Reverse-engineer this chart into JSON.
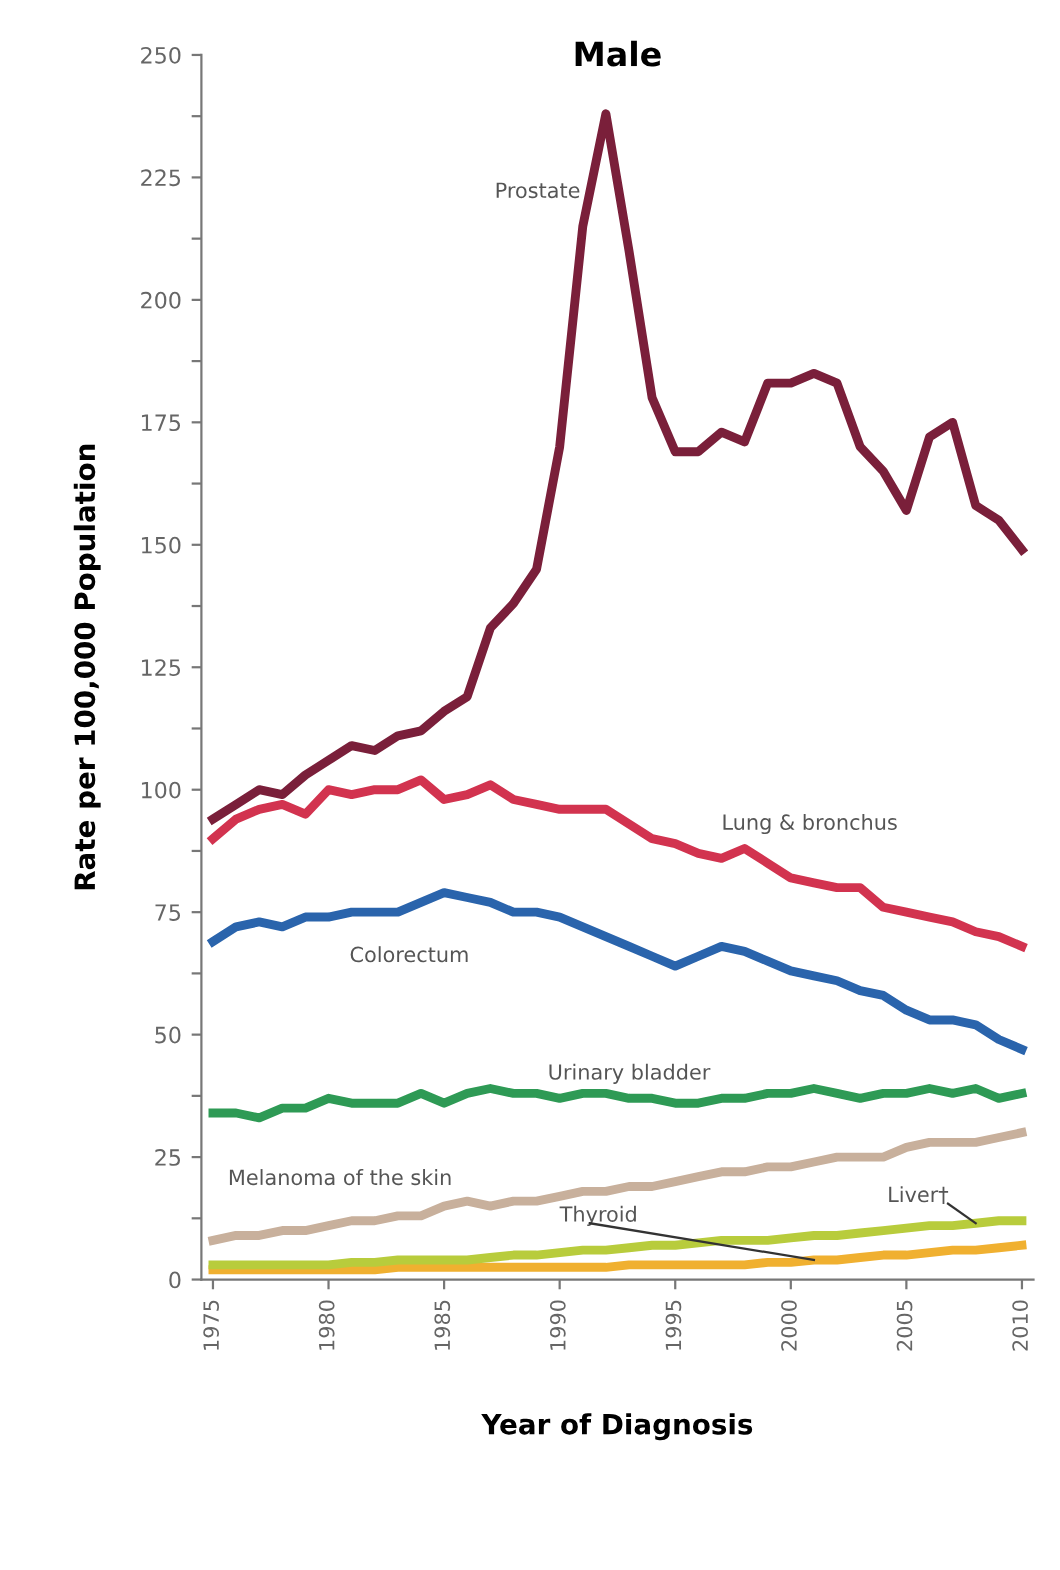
{
  "chart_data": {
    "type": "line",
    "title": "Male",
    "xlabel": "Year of Diagnosis",
    "ylabel": "Rate per 100,000 Population",
    "x": [
      1975,
      1976,
      1977,
      1978,
      1979,
      1980,
      1981,
      1982,
      1983,
      1984,
      1985,
      1986,
      1987,
      1988,
      1989,
      1990,
      1991,
      1992,
      1993,
      1994,
      1995,
      1996,
      1997,
      1998,
      1999,
      2000,
      2001,
      2002,
      2003,
      2004,
      2005,
      2006,
      2007,
      2008,
      2009,
      2010
    ],
    "series": [
      {
        "name": "Prostate",
        "color": "#7a1f3a",
        "values": [
          94,
          97,
          100,
          99,
          103,
          106,
          109,
          108,
          111,
          112,
          116,
          119,
          133,
          138,
          145,
          170,
          215,
          238,
          210,
          180,
          169,
          169,
          173,
          171,
          183,
          183,
          185,
          183,
          170,
          165,
          157,
          172,
          175,
          158,
          155,
          149
        ]
      },
      {
        "name": "Lung & bronchus",
        "color": "#d2334f",
        "values": [
          90,
          94,
          96,
          97,
          95,
          100,
          99,
          100,
          100,
          102,
          98,
          99,
          101,
          98,
          97,
          96,
          96,
          96,
          93,
          90,
          89,
          87,
          86,
          88,
          85,
          82,
          81,
          80,
          80,
          76,
          75,
          74,
          73,
          71,
          70,
          68
        ]
      },
      {
        "name": "Colorectum",
        "color": "#2a64ac",
        "values": [
          69,
          72,
          73,
          72,
          74,
          74,
          75,
          75,
          75,
          77,
          79,
          78,
          77,
          75,
          75,
          74,
          72,
          70,
          68,
          66,
          64,
          66,
          68,
          67,
          65,
          63,
          62,
          61,
          59,
          58,
          55,
          53,
          53,
          52,
          49,
          47
        ]
      },
      {
        "name": "Urinary bladder",
        "color": "#2e9a55",
        "values": [
          34,
          34,
          33,
          35,
          35,
          37,
          36,
          36,
          36,
          38,
          36,
          38,
          39,
          38,
          38,
          37,
          38,
          38,
          37,
          37,
          36,
          36,
          37,
          37,
          38,
          38,
          39,
          38,
          37,
          38,
          38,
          39,
          38,
          39,
          37,
          38
        ]
      },
      {
        "name": "Melanoma of the skin",
        "color": "#c8b09c",
        "values": [
          8,
          9,
          9,
          10,
          10,
          11,
          12,
          12,
          13,
          13,
          15,
          16,
          15,
          16,
          16,
          17,
          18,
          18,
          19,
          19,
          20,
          21,
          22,
          22,
          23,
          23,
          24,
          25,
          25,
          25,
          27,
          28,
          28,
          28,
          29,
          30
        ]
      },
      {
        "name": "Liver†",
        "color": "#b8cc3c",
        "values": [
          3,
          3,
          3,
          3,
          3,
          3,
          3.5,
          3.5,
          4,
          4,
          4,
          4,
          4.5,
          5,
          5,
          5.5,
          6,
          6,
          6.5,
          7,
          7,
          7.5,
          8,
          8,
          8,
          8.5,
          9,
          9,
          9.5,
          10,
          10.5,
          11,
          11,
          11.5,
          12,
          12
        ]
      },
      {
        "name": "Thyroid",
        "color": "#f0b030",
        "values": [
          2,
          2,
          2,
          2,
          2,
          2,
          2,
          2,
          2.5,
          2.5,
          2.5,
          2.5,
          2.5,
          2.5,
          2.5,
          2.5,
          2.5,
          2.5,
          3,
          3,
          3,
          3,
          3,
          3,
          3.5,
          3.5,
          4,
          4,
          4.5,
          5,
          5,
          5.5,
          6,
          6,
          6.5,
          7
        ]
      }
    ],
    "xlim": [
      1974.5,
      2010.5
    ],
    "xticks": [
      1975,
      1980,
      1985,
      1990,
      1995,
      2000,
      2005,
      2010
    ],
    "ylim": [
      0,
      250
    ],
    "yticks": [
      0,
      {
        "value": 12.5,
        "label": null
      },
      25,
      {
        "value": 37.5,
        "label": null
      },
      50,
      {
        "value": 62.5,
        "label": null
      },
      75,
      {
        "value": 87.5,
        "label": null
      },
      100,
      {
        "value": 112.5,
        "label": null
      },
      125,
      {
        "value": 137.5,
        "label": null
      },
      150,
      {
        "value": 162.5,
        "label": null
      },
      175,
      {
        "value": 187.5,
        "label": null
      },
      200,
      {
        "value": 212.5,
        "label": null
      },
      225,
      {
        "value": 237.5,
        "label": null
      },
      250
    ],
    "grid": false,
    "legend": false,
    "marker": "none",
    "line_style": "solid"
  }
}
